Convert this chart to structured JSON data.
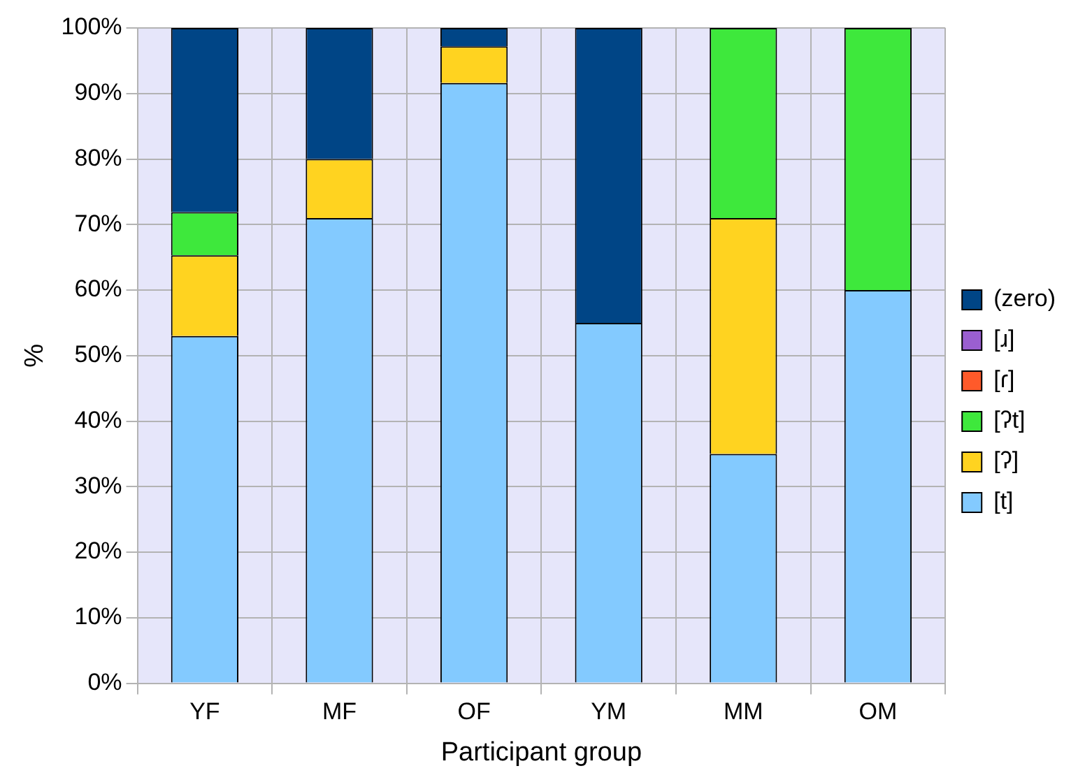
{
  "chart_data": {
    "type": "bar",
    "stacked": true,
    "xlabel": "Participant group",
    "ylabel": "%",
    "categories": [
      "YF",
      "MF",
      "OF",
      "YM",
      "MM",
      "OM"
    ],
    "series": [
      {
        "name": "[t]",
        "color": "#83caff",
        "values": [
          53,
          71,
          91.6,
          55,
          35,
          60
        ]
      },
      {
        "name": "[ʔ]",
        "color": "#ffd320",
        "values": [
          12.3,
          9,
          5.6,
          0,
          36,
          0
        ]
      },
      {
        "name": "[ʔt]",
        "color": "#3ee83c",
        "values": [
          6.6,
          0,
          0,
          0,
          29,
          40
        ]
      },
      {
        "name": "[ɾ]",
        "color": "#ff5a2a",
        "values": [
          0,
          0,
          0,
          0,
          0,
          0
        ]
      },
      {
        "name": "[ɹ]",
        "color": "#9a5fd0",
        "values": [
          0,
          0,
          0,
          0,
          0,
          0
        ]
      },
      {
        "name": "(zero)",
        "color": "#004586",
        "values": [
          28.1,
          20,
          2.8,
          45,
          0,
          0
        ]
      }
    ],
    "ylim": [
      0,
      100
    ],
    "yticks": [
      {
        "value": 0,
        "label": "0%"
      },
      {
        "value": 10,
        "label": "10%"
      },
      {
        "value": 20,
        "label": "20%"
      },
      {
        "value": 30,
        "label": "30%"
      },
      {
        "value": 40,
        "label": "40%"
      },
      {
        "value": 50,
        "label": "50%"
      },
      {
        "value": 60,
        "label": "60%"
      },
      {
        "value": 70,
        "label": "70%"
      },
      {
        "value": 80,
        "label": "80%"
      },
      {
        "value": 90,
        "label": "90%"
      },
      {
        "value": 100,
        "label": "100%"
      }
    ],
    "grid": true,
    "legend": "right"
  }
}
